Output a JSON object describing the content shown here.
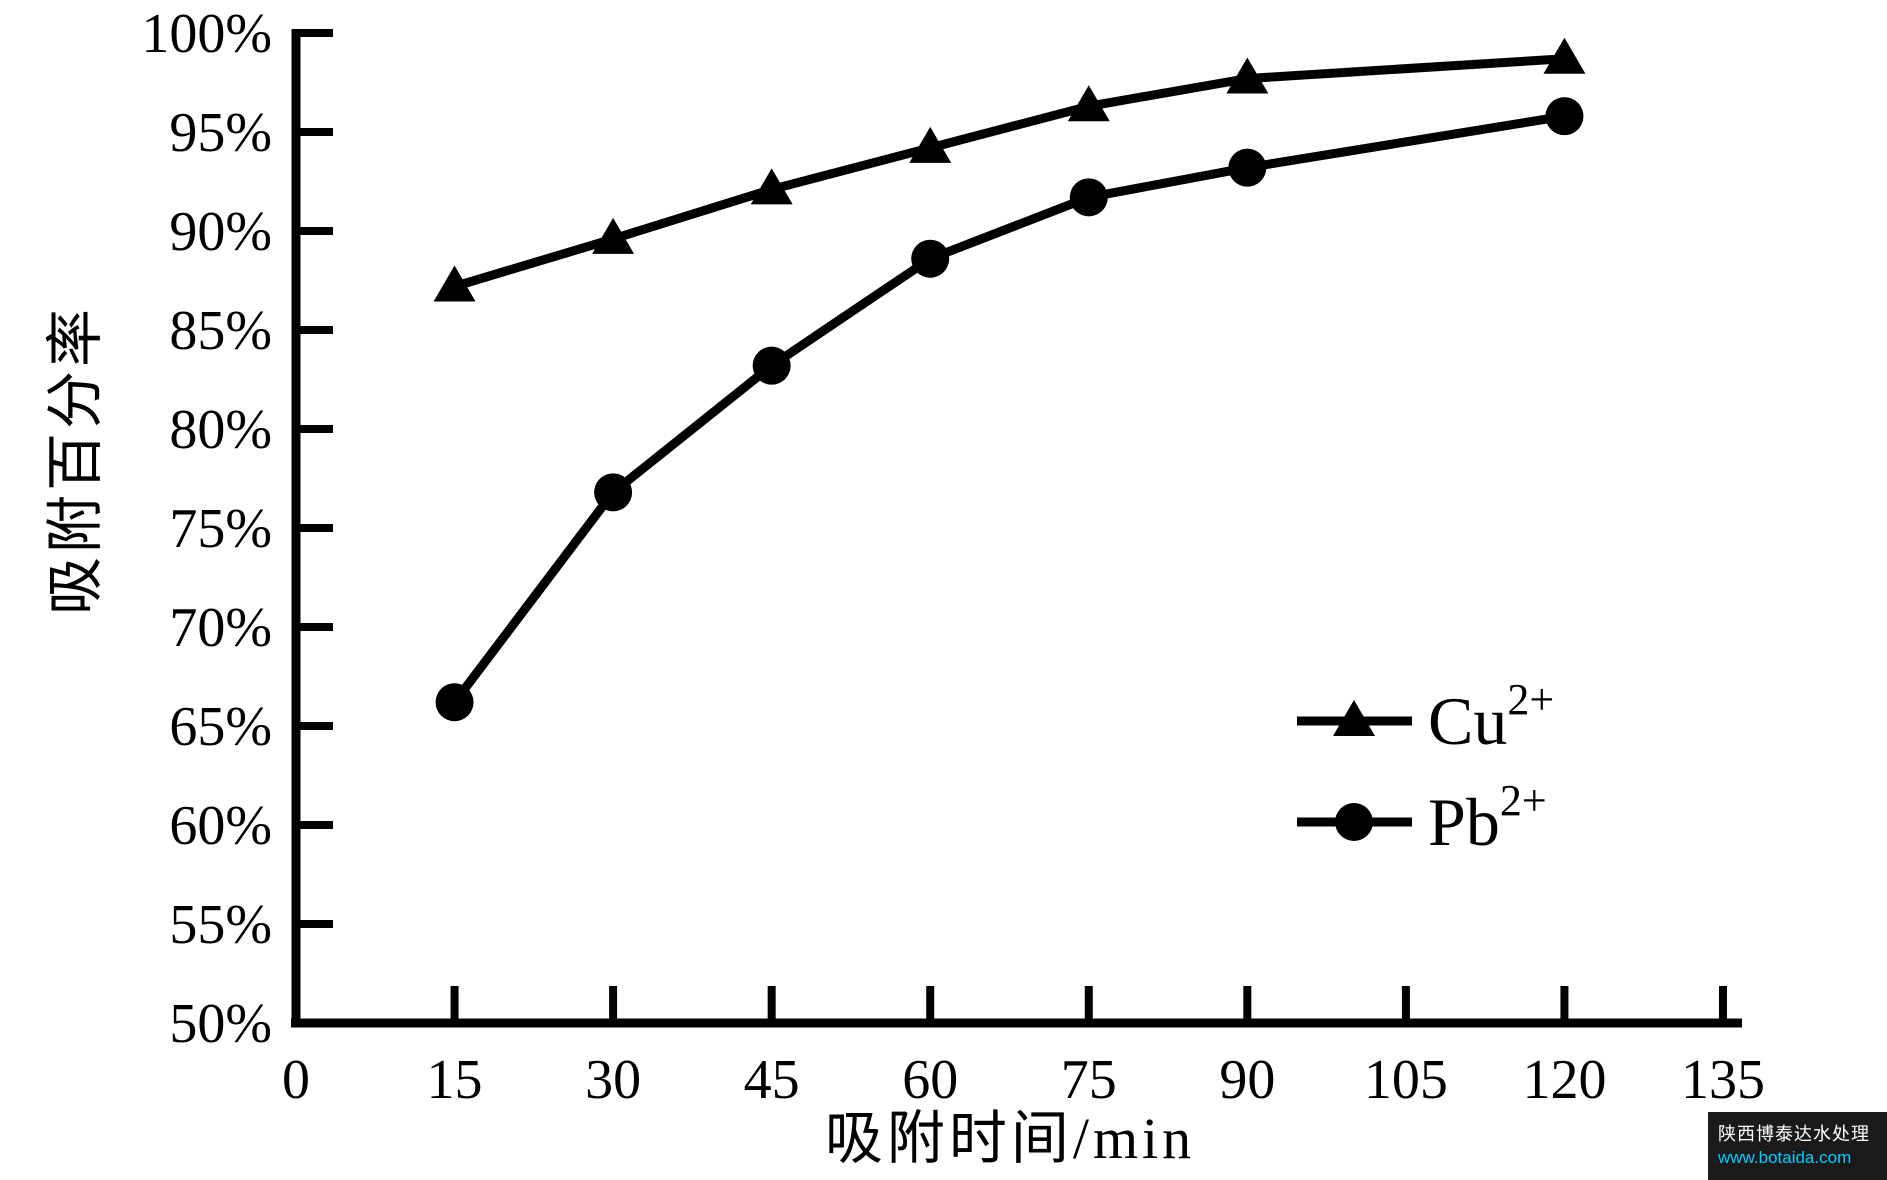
{
  "chart_data": {
    "type": "line",
    "title": "",
    "xlabel": "吸附时间/min",
    "ylabel": "吸附百分率",
    "xlim": [
      0,
      135
    ],
    "ylim": [
      50,
      100
    ],
    "grid": false,
    "legend_position": "center-right",
    "x_ticks": [
      0,
      15,
      30,
      45,
      60,
      75,
      90,
      105,
      120,
      135
    ],
    "x_tick_labels": [
      "0",
      "15",
      "30",
      "45",
      "60",
      "75",
      "90",
      "105",
      "120",
      "135"
    ],
    "y_ticks": [
      50,
      55,
      60,
      65,
      70,
      75,
      80,
      85,
      90,
      95,
      100
    ],
    "y_tick_labels": [
      "50%",
      "55%",
      "60%",
      "65%",
      "70%",
      "75%",
      "80%",
      "85%",
      "90%",
      "95%",
      "100%"
    ],
    "series": [
      {
        "name": "Cu2+",
        "label_base": "Cu",
        "label_sup": "2+",
        "marker": "triangle",
        "color": "#000000",
        "x": [
          15,
          30,
          45,
          60,
          75,
          90,
          120
        ],
        "y": [
          87.2,
          89.6,
          92.1,
          94.2,
          96.3,
          97.7,
          98.7
        ]
      },
      {
        "name": "Pb2+",
        "label_base": "Pb",
        "label_sup": "2+",
        "marker": "circle",
        "color": "#000000",
        "x": [
          15,
          30,
          45,
          60,
          75,
          90,
          120
        ],
        "y": [
          66.2,
          76.8,
          83.2,
          88.6,
          91.7,
          93.2,
          95.8
        ]
      }
    ]
  },
  "watermark": {
    "line1": "陕西博泰达水处理",
    "line2": "www.botaida.com",
    "bg_color": "#1a1a1a",
    "line1_color": "#ffffff",
    "line2_color": "#00ccff"
  },
  "colors": {
    "axis": "#000000",
    "background": "#ffffff"
  }
}
